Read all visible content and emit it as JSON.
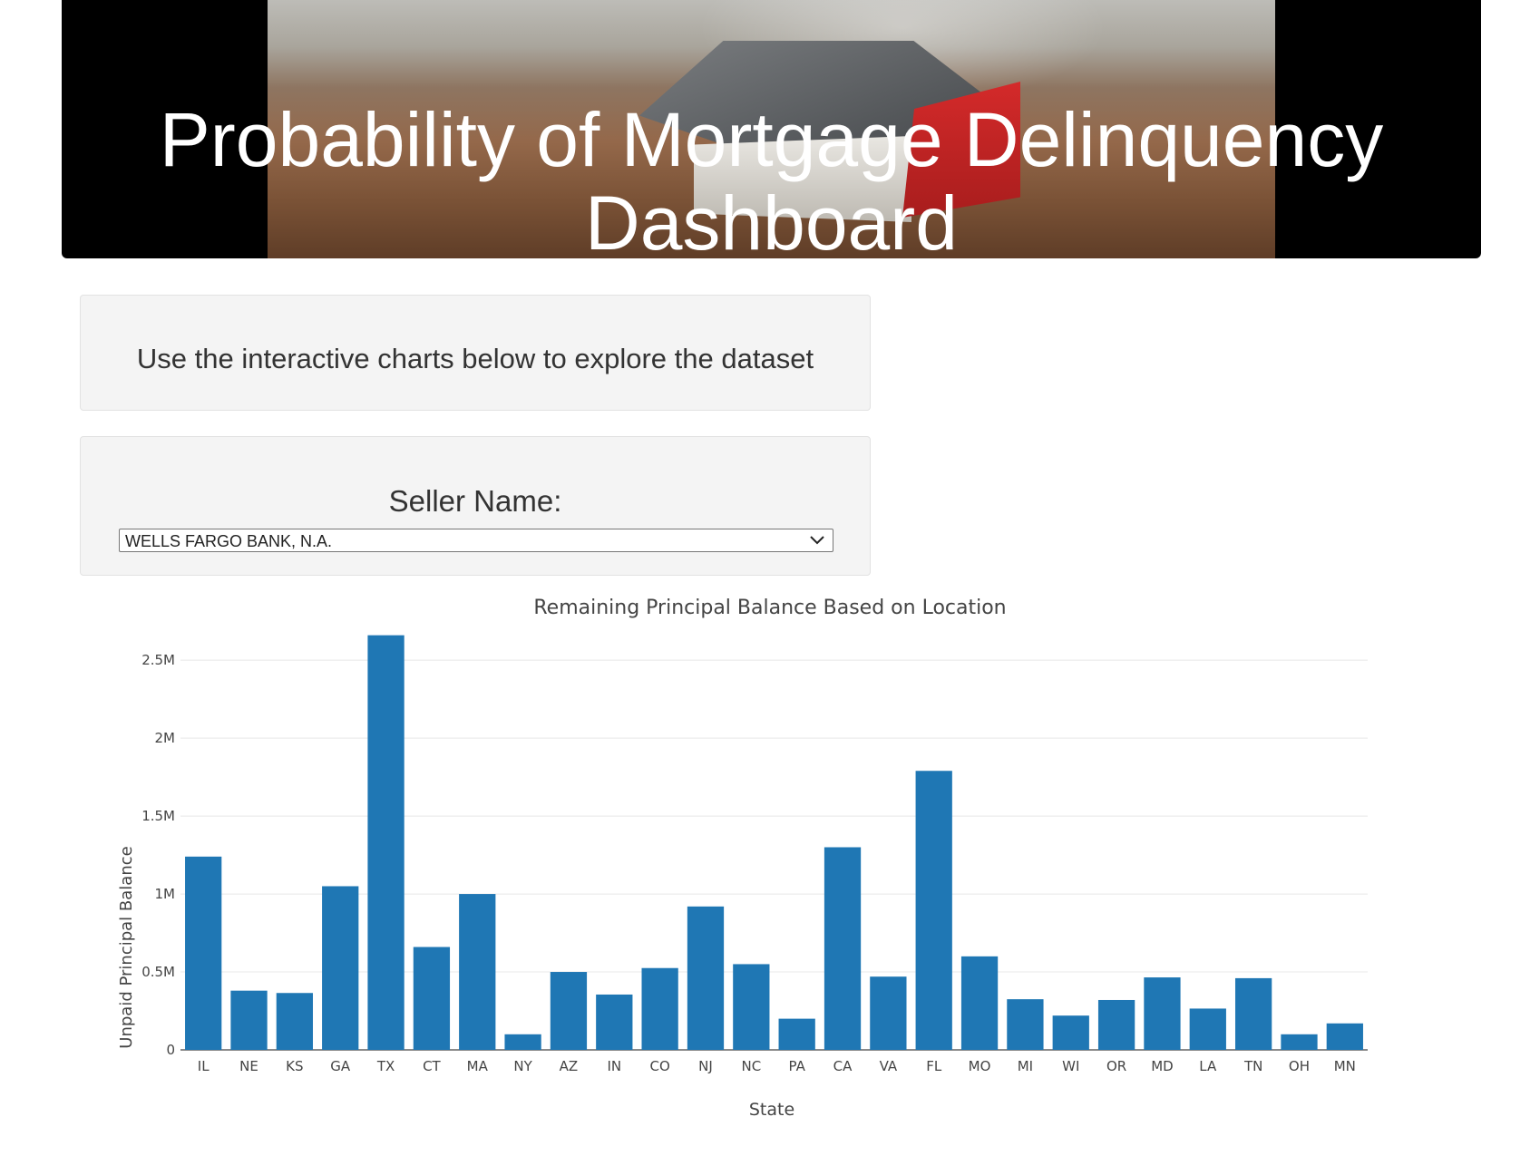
{
  "header": {
    "title": "Probability of Mortgage Delinquency Dashboard"
  },
  "intro": {
    "text": "Use the interactive charts below to explore the dataset"
  },
  "seller_filter": {
    "label": "Seller Name:",
    "selected": "WELLS FARGO BANK, N.A."
  },
  "colors": {
    "bar": "#1f77b4",
    "hero_bg": "#000000",
    "card_bg": "#f4f4f4"
  },
  "chart_data": {
    "type": "bar",
    "title": "Remaining Principal Balance Based on Location",
    "xlabel": "State",
    "ylabel": "Unpaid Principal Balance",
    "categories": [
      "IL",
      "NE",
      "KS",
      "GA",
      "TX",
      "CT",
      "MA",
      "NY",
      "AZ",
      "IN",
      "CO",
      "NJ",
      "NC",
      "PA",
      "CA",
      "VA",
      "FL",
      "MO",
      "MI",
      "WI",
      "OR",
      "MD",
      "LA",
      "TN",
      "OH",
      "MN"
    ],
    "values": [
      1240000,
      380000,
      365000,
      1050000,
      2660000,
      660000,
      1000000,
      100000,
      500000,
      355000,
      525000,
      920000,
      550000,
      200000,
      1300000,
      470000,
      1790000,
      600000,
      325000,
      220000,
      320000,
      465000,
      265000,
      460000,
      100000,
      170000
    ],
    "yticks": [
      0,
      500000,
      1000000,
      1500000,
      2000000,
      2500000
    ],
    "ytick_labels": [
      "0",
      "0.5M",
      "1M",
      "1.5M",
      "2M",
      "2.5M"
    ],
    "ylim": [
      0,
      2800000
    ],
    "grid": true,
    "legend": "none"
  }
}
